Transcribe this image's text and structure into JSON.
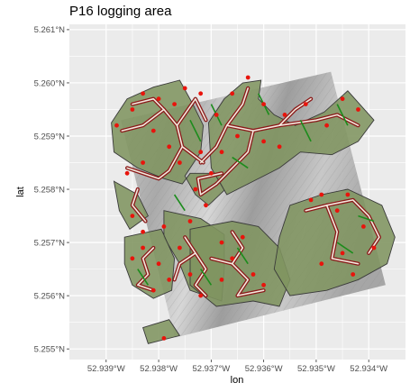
{
  "title": "P16 logging area",
  "axes": {
    "xlabel": "lon",
    "ylabel": "lat",
    "x_ticks": [
      {
        "value": -52.939,
        "label": "52.939°W"
      },
      {
        "value": -52.938,
        "label": "52.938°W"
      },
      {
        "value": -52.937,
        "label": "52.937°W"
      },
      {
        "value": -52.936,
        "label": "52.936°W"
      },
      {
        "value": -52.935,
        "label": "52.935°W"
      },
      {
        "value": -52.934,
        "label": "52.934°W"
      }
    ],
    "y_ticks": [
      {
        "value": 5.261,
        "label": "5.261°N"
      },
      {
        "value": 5.26,
        "label": "5.260°N"
      },
      {
        "value": 5.259,
        "label": "5.259°N"
      },
      {
        "value": 5.258,
        "label": "5.258°N"
      },
      {
        "value": 5.257,
        "label": "5.257°N"
      },
      {
        "value": 5.256,
        "label": "5.256°N"
      },
      {
        "value": 5.255,
        "label": "5.255°N"
      }
    ],
    "xlim": [
      -52.9397,
      -52.9333
    ],
    "ylim": [
      5.2548,
      5.2611
    ],
    "grid": true
  },
  "colors": {
    "panel": "#ebebeb",
    "grid": "#ffffff",
    "terrain": "#b8b8b8",
    "logging_zone": "#7f9460",
    "zone_outline": "#3a3a3a",
    "skid_trail": "#8b1a1a",
    "skid_trail_core": "#f3eadf",
    "felling_direction": "#1c8c1c",
    "tree": "#e8140c"
  },
  "map": {
    "terrain_extent": [
      [
        -52.93872,
        5.2593
      ],
      [
        -52.93472,
        5.26021
      ],
      [
        -52.93368,
        5.2562
      ],
      [
        -52.93769,
        5.25521
      ]
    ],
    "zones": [
      [
        [
          -52.9389,
          5.25925
        ],
        [
          -52.9386,
          5.2597
        ],
        [
          -52.9381,
          5.25992
        ],
        [
          -52.9376,
          5.26005
        ],
        [
          -52.93735,
          5.2596
        ],
        [
          -52.93715,
          5.2592
        ],
        [
          -52.9372,
          5.2587
        ],
        [
          -52.9375,
          5.25825
        ],
        [
          -52.9373,
          5.2579
        ],
        [
          -52.93705,
          5.2577
        ],
        [
          -52.93675,
          5.25798
        ],
        [
          -52.9369,
          5.2583
        ],
        [
          -52.9374,
          5.2583
        ],
        [
          -52.93755,
          5.2581
        ],
        [
          -52.9379,
          5.2582
        ],
        [
          -52.9384,
          5.2584
        ],
        [
          -52.93885,
          5.2587
        ]
      ],
      [
        [
          -52.93705,
          5.25925
        ],
        [
          -52.93675,
          5.2597
        ],
        [
          -52.9364,
          5.26
        ],
        [
          -52.93605,
          5.26005
        ],
        [
          -52.9361,
          5.2597
        ],
        [
          -52.9358,
          5.2594
        ],
        [
          -52.9354,
          5.2592
        ],
        [
          -52.93485,
          5.25945
        ],
        [
          -52.9344,
          5.25985
        ],
        [
          -52.9339,
          5.2593
        ],
        [
          -52.9342,
          5.2589
        ],
        [
          -52.9347,
          5.25865
        ],
        [
          -52.9353,
          5.2587
        ],
        [
          -52.9357,
          5.2584
        ],
        [
          -52.9363,
          5.2581
        ],
        [
          -52.9367,
          5.2579
        ],
        [
          -52.937,
          5.2584
        ]
      ],
      [
        [
          -52.93885,
          5.25815
        ],
        [
          -52.9384,
          5.2579
        ],
        [
          -52.9382,
          5.2575
        ],
        [
          -52.93855,
          5.25725
        ],
        [
          -52.93875,
          5.2576
        ]
      ],
      [
        [
          -52.9379,
          5.2576
        ],
        [
          -52.9372,
          5.25745
        ],
        [
          -52.93675,
          5.25715
        ],
        [
          -52.93675,
          5.2565
        ],
        [
          -52.9368,
          5.2559
        ],
        [
          -52.9374,
          5.2561
        ],
        [
          -52.9376,
          5.2566
        ],
        [
          -52.9379,
          5.2571
        ]
      ],
      [
        [
          -52.93865,
          5.2571
        ],
        [
          -52.93795,
          5.25725
        ],
        [
          -52.9377,
          5.2567
        ],
        [
          -52.93775,
          5.2561
        ],
        [
          -52.9381,
          5.25595
        ],
        [
          -52.9385,
          5.2562
        ],
        [
          -52.93865,
          5.2566
        ]
      ],
      [
        [
          -52.9374,
          5.25725
        ],
        [
          -52.9366,
          5.2574
        ],
        [
          -52.9361,
          5.2573
        ],
        [
          -52.9357,
          5.2569
        ],
        [
          -52.9355,
          5.2563
        ],
        [
          -52.9357,
          5.2558
        ],
        [
          -52.9362,
          5.2559
        ],
        [
          -52.9369,
          5.2558
        ],
        [
          -52.9374,
          5.2562
        ]
      ],
      [
        [
          -52.9355,
          5.2577
        ],
        [
          -52.9349,
          5.2579
        ],
        [
          -52.9344,
          5.258
        ],
        [
          -52.93375,
          5.2577
        ],
        [
          -52.9335,
          5.2571
        ],
        [
          -52.93365,
          5.2566
        ],
        [
          -52.9342,
          5.2563
        ],
        [
          -52.9348,
          5.2561
        ],
        [
          -52.9355,
          5.256
        ],
        [
          -52.9358,
          5.2565
        ],
        [
          -52.9357,
          5.2571
        ]
      ],
      [
        [
          -52.9383,
          5.2554
        ],
        [
          -52.9378,
          5.25555
        ],
        [
          -52.9376,
          5.25525
        ],
        [
          -52.9382,
          5.2551
        ]
      ]
    ],
    "trails": [
      [
        [
          -52.9385,
          5.2596
        ],
        [
          -52.9381,
          5.2597
        ],
        [
          -52.9379,
          5.2595
        ],
        [
          -52.93765,
          5.2592
        ],
        [
          -52.93755,
          5.2588
        ],
        [
          -52.93715,
          5.2585
        ]
      ],
      [
        [
          -52.93755,
          5.2588
        ],
        [
          -52.9378,
          5.25835
        ],
        [
          -52.938,
          5.2582
        ],
        [
          -52.9386,
          5.2584
        ]
      ],
      [
        [
          -52.9379,
          5.2595
        ],
        [
          -52.9383,
          5.2592
        ],
        [
          -52.9387,
          5.2591
        ]
      ],
      [
        [
          -52.93765,
          5.2592
        ],
        [
          -52.9373,
          5.2597
        ],
        [
          -52.9371,
          5.2593
        ]
      ],
      [
        [
          -52.9372,
          5.2585
        ],
        [
          -52.9369,
          5.2588
        ],
        [
          -52.9367,
          5.2592
        ],
        [
          -52.9364,
          5.2596
        ],
        [
          -52.9363,
          5.2599
        ]
      ],
      [
        [
          -52.9367,
          5.2592
        ],
        [
          -52.9362,
          5.2591
        ],
        [
          -52.9357,
          5.2592
        ],
        [
          -52.935,
          5.2593
        ],
        [
          -52.9346,
          5.2594
        ],
        [
          -52.9342,
          5.2592
        ]
      ],
      [
        [
          -52.9362,
          5.2591
        ],
        [
          -52.9363,
          5.2587
        ],
        [
          -52.9366,
          5.2584
        ],
        [
          -52.9369,
          5.2581
        ]
      ],
      [
        [
          -52.9369,
          5.2581
        ],
        [
          -52.9372,
          5.2579
        ],
        [
          -52.93725,
          5.2582
        ],
        [
          -52.9368,
          5.2583
        ]
      ],
      [
        [
          -52.9357,
          5.2592
        ],
        [
          -52.9354,
          5.2595
        ],
        [
          -52.9351,
          5.2597
        ]
      ],
      [
        [
          -52.93825,
          5.2574
        ],
        [
          -52.9385,
          5.2577
        ],
        [
          -52.9384,
          5.258
        ]
      ],
      [
        [
          -52.9375,
          5.2571
        ],
        [
          -52.9373,
          5.2568
        ],
        [
          -52.9371,
          5.2565
        ],
        [
          -52.9373,
          5.2562
        ],
        [
          -52.9371,
          5.256
        ]
      ],
      [
        [
          -52.9373,
          5.2568
        ],
        [
          -52.9376,
          5.2566
        ],
        [
          -52.9377,
          5.2563
        ]
      ],
      [
        [
          -52.9381,
          5.2569
        ],
        [
          -52.9383,
          5.2567
        ],
        [
          -52.9382,
          5.2564
        ],
        [
          -52.9384,
          5.2562
        ],
        [
          -52.9381,
          5.2561
        ]
      ],
      [
        [
          -52.9366,
          5.2572
        ],
        [
          -52.9364,
          5.2569
        ],
        [
          -52.9366,
          5.2566
        ],
        [
          -52.9363,
          5.2563
        ],
        [
          -52.9365,
          5.256
        ],
        [
          -52.936,
          5.2561
        ]
      ],
      [
        [
          -52.9366,
          5.2566
        ],
        [
          -52.937,
          5.2567
        ]
      ],
      [
        [
          -52.9352,
          5.2576
        ],
        [
          -52.9348,
          5.2577
        ],
        [
          -52.9343,
          5.2578
        ],
        [
          -52.934,
          5.2575
        ],
        [
          -52.9338,
          5.2571
        ],
        [
          -52.934,
          5.2568
        ]
      ],
      [
        [
          -52.9348,
          5.2577
        ],
        [
          -52.9346,
          5.2572
        ],
        [
          -52.9347,
          5.2567
        ],
        [
          -52.9342,
          5.2566
        ]
      ]
    ],
    "felling_lines": [
      [
        [
          -52.9374,
          5.2593
        ],
        [
          -52.9372,
          5.2589
        ]
      ],
      [
        [
          -52.937,
          5.2596
        ],
        [
          -52.9368,
          5.2592
        ]
      ],
      [
        [
          -52.9361,
          5.2598
        ],
        [
          -52.9359,
          5.2594
        ]
      ],
      [
        [
          -52.9353,
          5.2593
        ],
        [
          -52.9351,
          5.2589
        ]
      ],
      [
        [
          -52.9346,
          5.2596
        ],
        [
          -52.9344,
          5.2592
        ]
      ],
      [
        [
          -52.9366,
          5.2586
        ],
        [
          -52.9363,
          5.2584
        ]
      ],
      [
        [
          -52.9372,
          5.2565
        ],
        [
          -52.937,
          5.2562
        ]
      ],
      [
        [
          -52.9365,
          5.2569
        ],
        [
          -52.9363,
          5.2566
        ]
      ],
      [
        [
          -52.9346,
          5.257
        ],
        [
          -52.9343,
          5.2568
        ]
      ],
      [
        [
          -52.9342,
          5.2575
        ],
        [
          -52.9339,
          5.2574
        ]
      ],
      [
        [
          -52.9384,
          5.2565
        ],
        [
          -52.9382,
          5.2562
        ]
      ],
      [
        [
          -52.9377,
          5.2579
        ],
        [
          -52.9375,
          5.2576
        ]
      ]
    ],
    "trees": [
      [
        -52.9388,
        5.2592
      ],
      [
        -52.9385,
        5.2595
      ],
      [
        -52.9383,
        5.2598
      ],
      [
        -52.938,
        5.2597
      ],
      [
        -52.9377,
        5.2596
      ],
      [
        -52.9375,
        5.2599
      ],
      [
        -52.9372,
        5.2598
      ],
      [
        -52.9369,
        5.2594
      ],
      [
        -52.9366,
        5.2598
      ],
      [
        -52.9363,
        5.2601
      ],
      [
        -52.936,
        5.2596
      ],
      [
        -52.9356,
        5.2594
      ],
      [
        -52.9352,
        5.2596
      ],
      [
        -52.9348,
        5.2592
      ],
      [
        -52.9345,
        5.2597
      ],
      [
        -52.9342,
        5.2595
      ],
      [
        -52.9381,
        5.2591
      ],
      [
        -52.9378,
        5.2588
      ],
      [
        -52.9376,
        5.2585
      ],
      [
        -52.9372,
        5.2587
      ],
      [
        -52.937,
        5.2583
      ],
      [
        -52.9368,
        5.2587
      ],
      [
        -52.9365,
        5.259
      ],
      [
        -52.936,
        5.2589
      ],
      [
        -52.9357,
        5.2588
      ],
      [
        -52.9383,
        5.2585
      ],
      [
        -52.9386,
        5.2583
      ],
      [
        -52.9385,
        5.2575
      ],
      [
        -52.9383,
        5.2572
      ],
      [
        -52.9379,
        5.2573
      ],
      [
        -52.9376,
        5.2569
      ],
      [
        -52.9374,
        5.2574
      ],
      [
        -52.9371,
        5.2577
      ],
      [
        -52.9373,
        5.258
      ],
      [
        -52.9383,
        5.2569
      ],
      [
        -52.938,
        5.2566
      ],
      [
        -52.9378,
        5.2563
      ],
      [
        -52.9374,
        5.2564
      ],
      [
        -52.9372,
        5.256
      ],
      [
        -52.9368,
        5.2563
      ],
      [
        -52.9366,
        5.2567
      ],
      [
        -52.9364,
        5.2571
      ],
      [
        -52.9362,
        5.2564
      ],
      [
        -52.936,
        5.2562
      ],
      [
        -52.9368,
        5.257
      ],
      [
        -52.9351,
        5.2578
      ],
      [
        -52.9349,
        5.2579
      ],
      [
        -52.9346,
        5.2576
      ],
      [
        -52.9344,
        5.2579
      ],
      [
        -52.9341,
        5.2573
      ],
      [
        -52.9339,
        5.2569
      ],
      [
        -52.9345,
        5.2568
      ],
      [
        -52.9349,
        5.2566
      ],
      [
        -52.9343,
        5.2564
      ],
      [
        -52.9379,
        5.2552
      ],
      [
        -52.9381,
        5.2561
      ],
      [
        -52.9385,
        5.2567
      ]
    ]
  }
}
